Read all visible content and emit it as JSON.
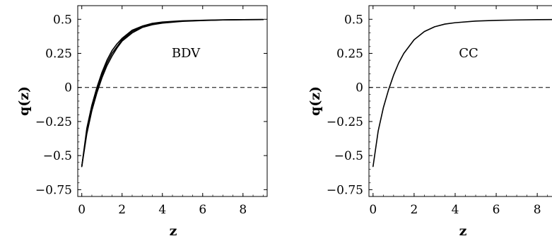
{
  "chart_data": [
    {
      "type": "line",
      "annotation": "BDV",
      "xlabel": "z",
      "ylabel": "q(z)",
      "xlim": [
        -0.2,
        9.2
      ],
      "ylim": [
        -0.8,
        0.6
      ],
      "xticks": [
        0,
        2,
        4,
        6,
        8
      ],
      "xtick_labels": [
        "0",
        "2",
        "4",
        "6",
        "8"
      ],
      "yticks": [
        0.5,
        0.25,
        0,
        -0.25,
        -0.5,
        -0.75
      ],
      "ytick_labels": [
        "0.5",
        "0.25",
        "0",
        "−0.25",
        "−0.5",
        "−0.75"
      ],
      "reference_line": {
        "y": 0,
        "style": "dashed"
      },
      "grid": false,
      "legend": "none",
      "series": [
        {
          "x": [
            0,
            0.25,
            0.5,
            0.75,
            1,
            1.25,
            1.5,
            1.75,
            2,
            2.5,
            3,
            3.5,
            4,
            5,
            6,
            7,
            8,
            9
          ],
          "y": [
            -0.58,
            -0.32,
            -0.15,
            -0.02,
            0.09,
            0.18,
            0.25,
            0.3,
            0.35,
            0.41,
            0.445,
            0.465,
            0.475,
            0.487,
            0.492,
            0.495,
            0.497,
            0.498
          ]
        },
        {
          "x": [
            0,
            0.25,
            0.5,
            0.75,
            1,
            1.25,
            1.5,
            1.75,
            2,
            2.5,
            3,
            3.5,
            4,
            5,
            6,
            7,
            8,
            9
          ],
          "y": [
            -0.58,
            -0.3,
            -0.13,
            0.0,
            0.11,
            0.2,
            0.27,
            0.32,
            0.36,
            0.42,
            0.45,
            0.47,
            0.48,
            0.489,
            0.493,
            0.496,
            0.497,
            0.498
          ]
        },
        {
          "x": [
            0,
            0.25,
            0.5,
            0.75,
            1,
            1.25,
            1.5,
            1.75,
            2,
            2.5,
            3,
            3.5,
            4,
            5,
            6,
            7,
            8,
            9
          ],
          "y": [
            -0.58,
            -0.34,
            -0.17,
            -0.04,
            0.07,
            0.16,
            0.23,
            0.29,
            0.34,
            0.4,
            0.44,
            0.46,
            0.472,
            0.485,
            0.491,
            0.495,
            0.497,
            0.498
          ]
        }
      ]
    },
    {
      "type": "line",
      "annotation": "CC",
      "xlabel": "z",
      "ylabel": "q(z)",
      "xlim": [
        -0.2,
        9.2
      ],
      "ylim": [
        -0.8,
        0.6
      ],
      "xticks": [
        0,
        2,
        4,
        6,
        8
      ],
      "xtick_labels": [
        "0",
        "2",
        "4",
        "6",
        "8"
      ],
      "yticks": [
        0.5,
        0.25,
        0,
        -0.25,
        -0.5,
        -0.75
      ],
      "ytick_labels": [
        "0.5",
        "0.25",
        "0",
        "−0.25",
        "−0.5",
        "−0.75"
      ],
      "reference_line": {
        "y": 0,
        "style": "dashed"
      },
      "grid": false,
      "legend": "none",
      "series": [
        {
          "x": [
            0,
            0.25,
            0.5,
            0.75,
            1,
            1.25,
            1.5,
            1.75,
            2,
            2.5,
            3,
            3.5,
            4,
            5,
            6,
            7,
            8,
            9
          ],
          "y": [
            -0.58,
            -0.32,
            -0.15,
            -0.02,
            0.09,
            0.18,
            0.25,
            0.3,
            0.35,
            0.41,
            0.445,
            0.465,
            0.475,
            0.487,
            0.492,
            0.495,
            0.497,
            0.498
          ]
        }
      ]
    }
  ]
}
